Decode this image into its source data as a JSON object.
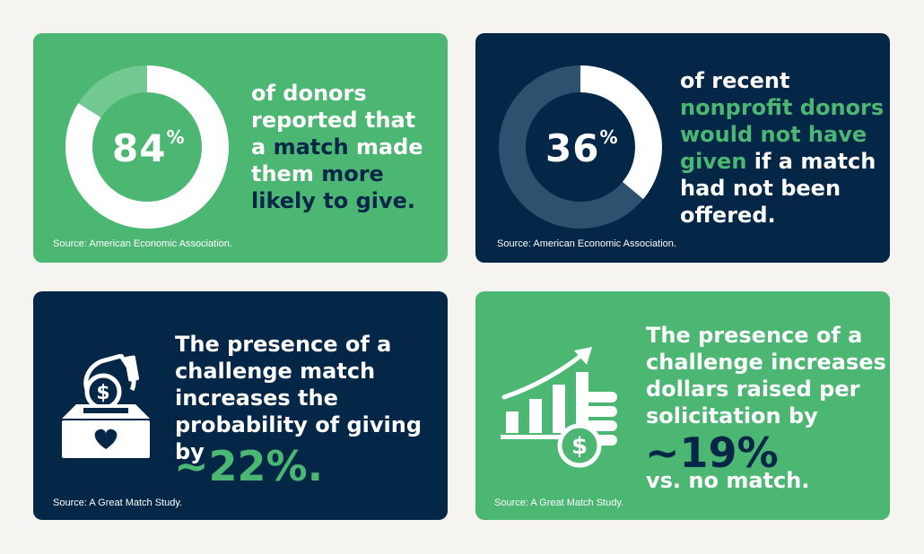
{
  "card1": {
    "percent": "84",
    "percent_sign": "%",
    "line1": "of donors",
    "line2": "reported that",
    "line3_pre": "a ",
    "line3_hl": "match",
    "line3_post": " made",
    "line4_pre": "them ",
    "line4_hl": "more",
    "line5_hl": "likely to give.",
    "source": "Source: American Economic Association.",
    "value_percent": 84
  },
  "card2": {
    "percent": "36",
    "percent_sign": "%",
    "line1": "of recent",
    "line2_hl": "nonprofit donors",
    "line3_hl": "would not have",
    "line4_hl": "given",
    "line4_post": " if a match",
    "line5": "had not been",
    "line6": "offered.",
    "source": "Source: American Economic Association.",
    "value_percent": 36
  },
  "card3": {
    "line1": "The presence of a",
    "line2": "challenge match",
    "line3": "increases the",
    "line4": "probability of giving by",
    "big": "~22%.",
    "source": "Source: A Great Match Study.",
    "icon": "donation-box-icon"
  },
  "card4": {
    "line1": "The presence of a",
    "line2": "challenge increases",
    "line3": "dollars raised per",
    "line4": "solicitation by",
    "big": "~19%",
    "line5": "vs. no match.",
    "source": "Source: A Great Match Study.",
    "icon": "growth-chart-coins-icon"
  },
  "colors": {
    "green": "#4cb673",
    "navy": "#042748",
    "background": "#f6f4f1"
  }
}
